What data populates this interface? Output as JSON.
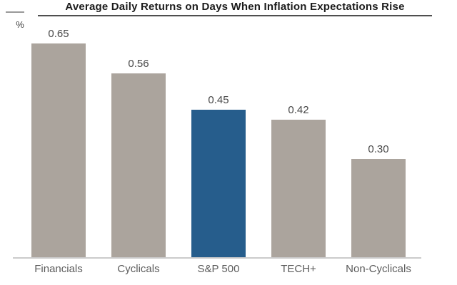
{
  "header": {
    "title": "Average Daily Returns on Days When Inflation Expectations Rise",
    "y_axis_unit": "%"
  },
  "chart_data": {
    "type": "bar",
    "title": "Average Daily Returns on Days When Inflation Expectations Rise",
    "xlabel": "",
    "ylabel": "%",
    "categories": [
      "Financials",
      "Cyclicals",
      "S&P 500",
      "TECH+",
      "Non-Cyclicals"
    ],
    "values": [
      0.65,
      0.56,
      0.45,
      0.42,
      0.3
    ],
    "value_labels": [
      "0.65",
      "0.56",
      "0.45",
      "0.42",
      "0.30"
    ],
    "highlighted_category": "S&P 500",
    "bar_color": "#aba49d",
    "highlight_color": "#265d8c",
    "ylim": [
      0,
      0.78
    ],
    "grid": false,
    "legend_position": "none"
  }
}
